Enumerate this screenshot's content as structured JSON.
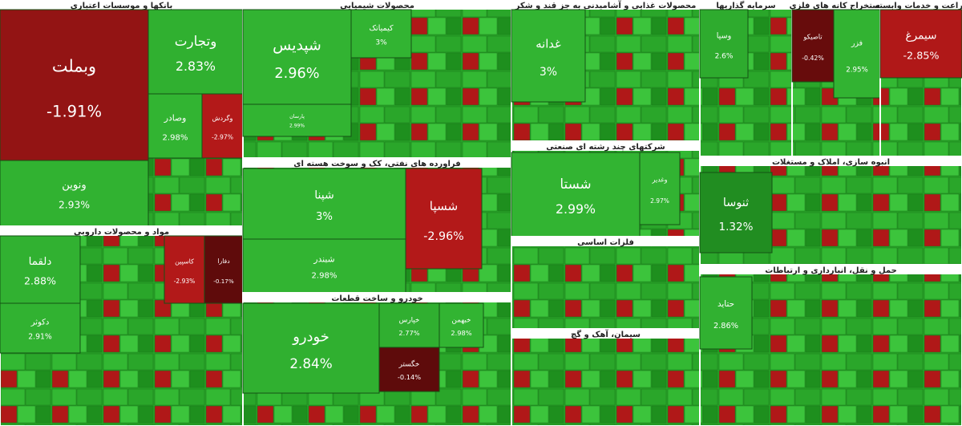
{
  "chart_data": {
    "type": "treemap",
    "sectors": [
      {
        "title": "بانکها و موسسات اعتباری",
        "tiles": {
          "names": [
            "وبملت",
            "وتجارت",
            "وصادر",
            "وگردش",
            "ونوین"
          ],
          "values": [
            -1.91,
            2.83,
            2.98,
            -2.97,
            2.93
          ],
          "value_labels": [
            "-1.91%",
            "2.83%",
            "2.98%",
            "-2.97%",
            "2.93%"
          ]
        }
      },
      {
        "title": "مواد و محصولات دارویی",
        "tiles": {
          "names": [
            "دلقما",
            "دکوثر",
            "کاسپین",
            "دفارا"
          ],
          "values": [
            2.88,
            2.91,
            -2.93,
            -0.17
          ],
          "value_labels": [
            "2.88%",
            "2.91%",
            "-2.93%",
            "-0.17%"
          ]
        }
      },
      {
        "title": "محصولات شیمیایی",
        "tiles": {
          "names": [
            "شپدیس",
            "کیمیاتک",
            "پارسان"
          ],
          "values": [
            2.96,
            3,
            2.99
          ],
          "value_labels": [
            "2.96%",
            "3%",
            "2.99%"
          ]
        }
      },
      {
        "title": "فراورده های نفتی، کک و سوخت هسته ای",
        "tiles": {
          "names": [
            "شپنا",
            "شبندر",
            "شسپا"
          ],
          "values": [
            3,
            2.98,
            -2.96
          ],
          "value_labels": [
            "3%",
            "2.98%",
            "-2.96%"
          ]
        }
      },
      {
        "title": "خودرو و ساخت قطعات",
        "tiles": {
          "names": [
            "خودرو",
            "خپارس",
            "خبهمن",
            "خگستر"
          ],
          "values": [
            2.84,
            2.77,
            2.98,
            -0.14
          ],
          "value_labels": [
            "2.84%",
            "2.77%",
            "2.98%",
            "-0.14%"
          ]
        }
      },
      {
        "title": "محصولات غذایی و آشامیدنی به جز قند و شکر",
        "tiles": {
          "names": [
            "غدانه"
          ],
          "values": [
            3
          ],
          "value_labels": [
            "3%"
          ]
        }
      },
      {
        "title": "شرکتهای چند رشته ای صنعتی",
        "tiles": {
          "names": [
            "شستا",
            "وغدیر"
          ],
          "values": [
            2.99,
            2.97
          ],
          "value_labels": [
            "2.99%",
            "2.97%"
          ]
        }
      },
      {
        "title": "فلزات اساسی",
        "tiles": {
          "names": [],
          "values": [],
          "value_labels": []
        }
      },
      {
        "title": "سیمان، آهک و گچ",
        "tiles": {
          "names": [],
          "values": [],
          "value_labels": []
        }
      },
      {
        "title": "سرمایه گذاریها",
        "tiles": {
          "names": [
            "وسپا"
          ],
          "values": [
            2.6
          ],
          "value_labels": [
            "2.6%"
          ]
        }
      },
      {
        "title": "استخراج کانه های فلزی",
        "tiles": {
          "names": [
            "فزر",
            "تاصیکو"
          ],
          "values": [
            2.95,
            -0.42
          ],
          "value_labels": [
            "2.95%",
            "-0.42%"
          ]
        }
      },
      {
        "title": "زراعت و خدمات وابسته",
        "tiles": {
          "names": [
            "سیمرغ"
          ],
          "values": [
            -2.85
          ],
          "value_labels": [
            "-2.85%"
          ]
        }
      },
      {
        "title": "انبوه سازی، املاک و مستغلات",
        "tiles": {
          "names": [
            "ثنوسا"
          ],
          "values": [
            1.32
          ],
          "value_labels": [
            "1.32%"
          ]
        }
      },
      {
        "title": "حمل و نقل، انبارداری و ارتباطات",
        "tiles": {
          "names": [
            "حتاید"
          ],
          "values": [
            2.86
          ],
          "value_labels": [
            "2.86%"
          ]
        }
      }
    ]
  }
}
